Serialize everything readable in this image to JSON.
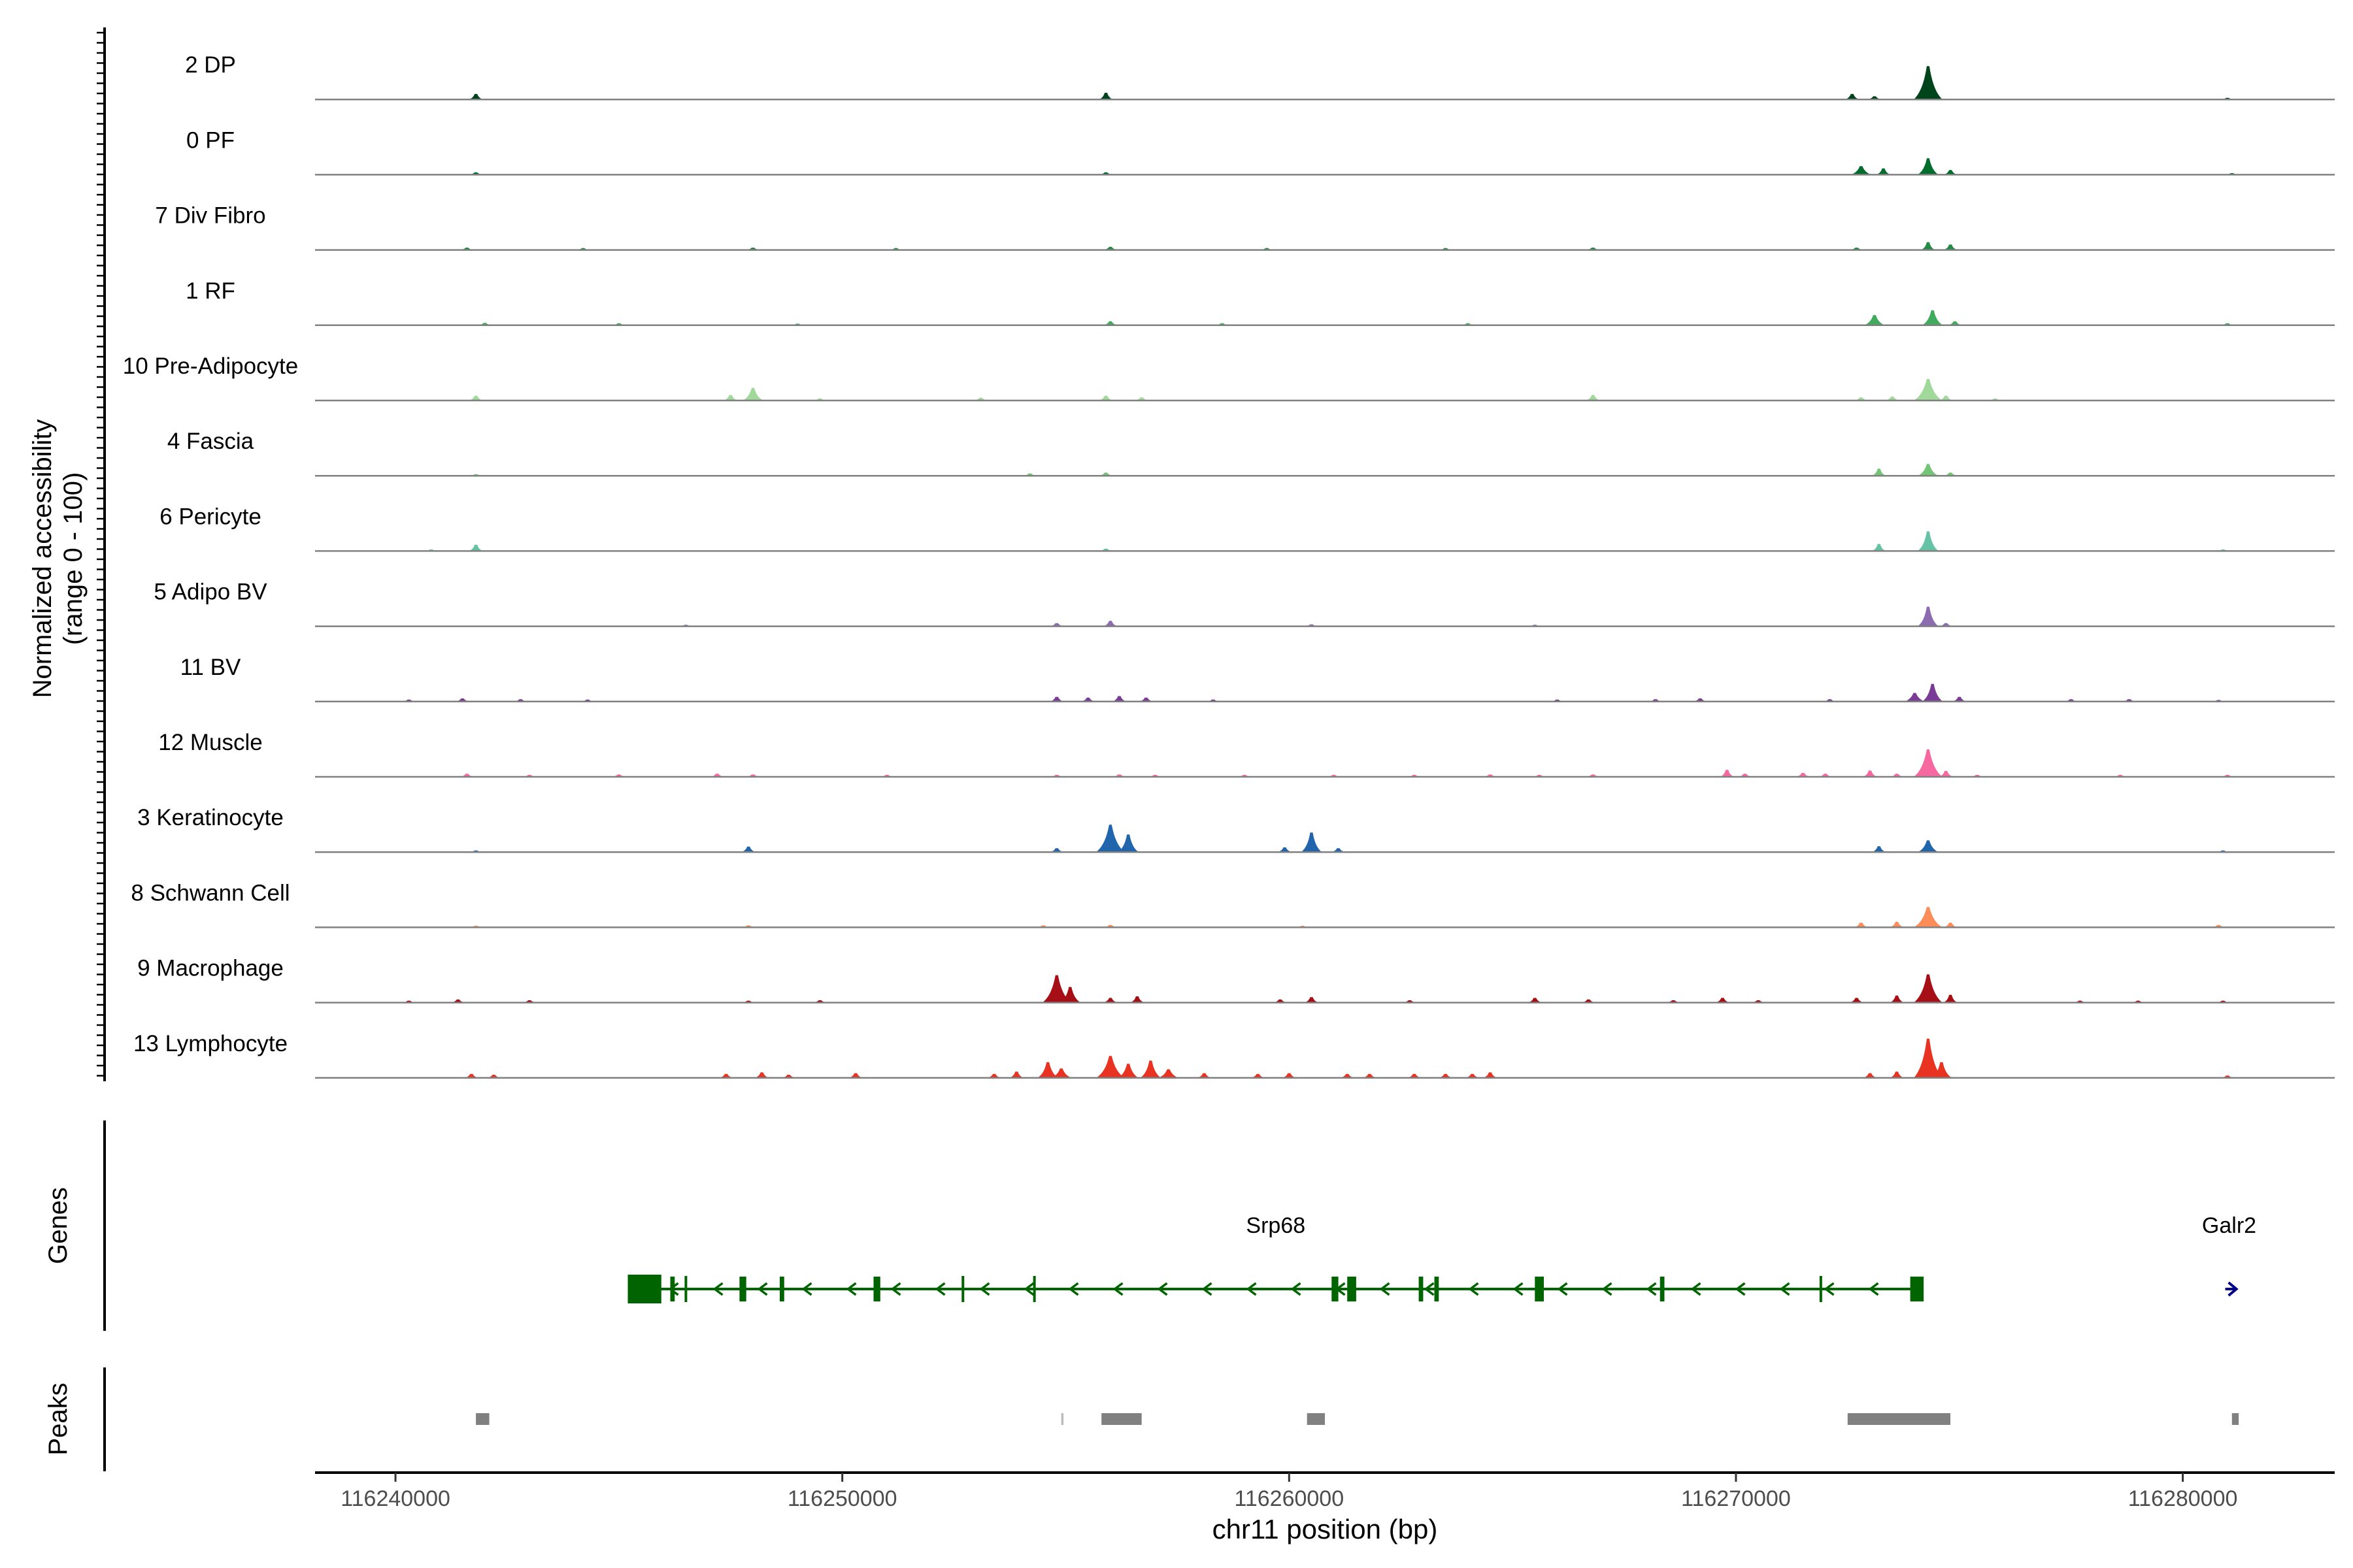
{
  "chart_data": {
    "type": "area",
    "title": "",
    "x_axis": {
      "label": "chr11 position (bp)",
      "range": [
        116238200,
        116283400
      ],
      "ticks": [
        116240000,
        116250000,
        116260000,
        116270000,
        116280000
      ],
      "tick_labels": [
        "116240000",
        "116250000",
        "116260000",
        "116270000",
        "116280000"
      ]
    },
    "coverage_panel": {
      "ylabel_line1": "Normalized accessibility",
      "ylabel_line2": "(range 0 - 100)",
      "ylim": [
        0,
        100
      ],
      "series": [
        {
          "name": "2 DP",
          "color": "#00441b",
          "peaks": [
            [
              116241800,
              14
            ],
            [
              116255900,
              17
            ],
            [
              116272600,
              14
            ],
            [
              116273100,
              8
            ],
            [
              116274300,
              85
            ],
            [
              116281000,
              4
            ]
          ]
        },
        {
          "name": "0 PF",
          "color": "#006d2c",
          "peaks": [
            [
              116241800,
              6
            ],
            [
              116255900,
              6
            ],
            [
              116272800,
              22
            ],
            [
              116273300,
              16
            ],
            [
              116274300,
              42
            ],
            [
              116274800,
              12
            ],
            [
              116281100,
              4
            ]
          ]
        },
        {
          "name": "7 Div Fibro",
          "color": "#238b45",
          "peaks": [
            [
              116241600,
              6
            ],
            [
              116244200,
              5
            ],
            [
              116248000,
              6
            ],
            [
              116251200,
              5
            ],
            [
              116256000,
              8
            ],
            [
              116259500,
              5
            ],
            [
              116263500,
              5
            ],
            [
              116266800,
              6
            ],
            [
              116272700,
              6
            ],
            [
              116274300,
              20
            ],
            [
              116274800,
              14
            ]
          ]
        },
        {
          "name": "1 RF",
          "color": "#41ab5d",
          "peaks": [
            [
              116242000,
              6
            ],
            [
              116245000,
              5
            ],
            [
              116249000,
              4
            ],
            [
              116256000,
              10
            ],
            [
              116258500,
              5
            ],
            [
              116264000,
              5
            ],
            [
              116273100,
              26
            ],
            [
              116274400,
              38
            ],
            [
              116274900,
              10
            ],
            [
              116281000,
              5
            ]
          ]
        },
        {
          "name": "10 Pre-Adipocyte",
          "color": "#a1d99b",
          "peaks": [
            [
              116241800,
              12
            ],
            [
              116247500,
              14
            ],
            [
              116248000,
              32
            ],
            [
              116249500,
              5
            ],
            [
              116253100,
              7
            ],
            [
              116255900,
              12
            ],
            [
              116256700,
              8
            ],
            [
              116266800,
              14
            ],
            [
              116272800,
              8
            ],
            [
              116273500,
              10
            ],
            [
              116274300,
              55
            ],
            [
              116274700,
              12
            ],
            [
              116275800,
              5
            ]
          ]
        },
        {
          "name": "4 Fascia",
          "color": "#74c476",
          "peaks": [
            [
              116241800,
              4
            ],
            [
              116254200,
              6
            ],
            [
              116255900,
              8
            ],
            [
              116273200,
              18
            ],
            [
              116274300,
              30
            ],
            [
              116274800,
              8
            ]
          ]
        },
        {
          "name": "6 Pericyte",
          "color": "#66c2a4",
          "peaks": [
            [
              116240800,
              4
            ],
            [
              116241800,
              16
            ],
            [
              116255900,
              6
            ],
            [
              116273200,
              18
            ],
            [
              116274300,
              50
            ],
            [
              116280900,
              4
            ]
          ]
        },
        {
          "name": "5 Adipo BV",
          "color": "#8c6bb1",
          "peaks": [
            [
              116246500,
              4
            ],
            [
              116254800,
              8
            ],
            [
              116256000,
              14
            ],
            [
              116260500,
              5
            ],
            [
              116265500,
              4
            ],
            [
              116274300,
              50
            ],
            [
              116274700,
              8
            ]
          ]
        },
        {
          "name": "11 BV",
          "color": "#7a3b96",
          "peaks": [
            [
              116240300,
              5
            ],
            [
              116241500,
              8
            ],
            [
              116242800,
              6
            ],
            [
              116244300,
              5
            ],
            [
              116254800,
              12
            ],
            [
              116255500,
              10
            ],
            [
              116256200,
              14
            ],
            [
              116256800,
              10
            ],
            [
              116258300,
              5
            ],
            [
              116266000,
              5
            ],
            [
              116268200,
              6
            ],
            [
              116269200,
              8
            ],
            [
              116272100,
              6
            ],
            [
              116274000,
              22
            ],
            [
              116274400,
              45
            ],
            [
              116275000,
              12
            ],
            [
              116277500,
              6
            ],
            [
              116278800,
              6
            ],
            [
              116280800,
              4
            ]
          ]
        },
        {
          "name": "12 Muscle",
          "color": "#f768a1",
          "peaks": [
            [
              116241600,
              8
            ],
            [
              116243000,
              5
            ],
            [
              116245000,
              6
            ],
            [
              116247200,
              8
            ],
            [
              116248000,
              6
            ],
            [
              116251000,
              5
            ],
            [
              116254800,
              5
            ],
            [
              116256200,
              6
            ],
            [
              116257000,
              5
            ],
            [
              116259000,
              5
            ],
            [
              116261000,
              5
            ],
            [
              116262800,
              5
            ],
            [
              116264500,
              6
            ],
            [
              116265600,
              5
            ],
            [
              116266800,
              6
            ],
            [
              116269800,
              18
            ],
            [
              116270200,
              8
            ],
            [
              116271500,
              10
            ],
            [
              116272000,
              8
            ],
            [
              116273000,
              16
            ],
            [
              116273600,
              8
            ],
            [
              116274300,
              70
            ],
            [
              116274700,
              15
            ],
            [
              116275400,
              5
            ],
            [
              116278600,
              5
            ],
            [
              116281000,
              5
            ]
          ]
        },
        {
          "name": "3 Keratinocyte",
          "color": "#2166ac",
          "peaks": [
            [
              116241800,
              4
            ],
            [
              116247900,
              14
            ],
            [
              116254800,
              10
            ],
            [
              116256000,
              70
            ],
            [
              116256400,
              45
            ],
            [
              116259900,
              12
            ],
            [
              116260500,
              50
            ],
            [
              116261100,
              10
            ],
            [
              116273200,
              15
            ],
            [
              116274300,
              30
            ],
            [
              116280900,
              4
            ]
          ]
        },
        {
          "name": "8 Schwann Cell",
          "color": "#fc8d59",
          "peaks": [
            [
              116241800,
              4
            ],
            [
              116247900,
              5
            ],
            [
              116254500,
              5
            ],
            [
              116256000,
              6
            ],
            [
              116260300,
              4
            ],
            [
              116272800,
              12
            ],
            [
              116273600,
              14
            ],
            [
              116274300,
              52
            ],
            [
              116274800,
              12
            ],
            [
              116280800,
              6
            ]
          ]
        },
        {
          "name": "9 Macrophage",
          "color": "#a50f15",
          "peaks": [
            [
              116240300,
              5
            ],
            [
              116241400,
              8
            ],
            [
              116243000,
              6
            ],
            [
              116247900,
              5
            ],
            [
              116249500,
              6
            ],
            [
              116254800,
              70
            ],
            [
              116255100,
              40
            ],
            [
              116256000,
              12
            ],
            [
              116256600,
              16
            ],
            [
              116259800,
              8
            ],
            [
              116260500,
              14
            ],
            [
              116262700,
              6
            ],
            [
              116265500,
              12
            ],
            [
              116266700,
              8
            ],
            [
              116268600,
              6
            ],
            [
              116269700,
              12
            ],
            [
              116270500,
              6
            ],
            [
              116272700,
              12
            ],
            [
              116273600,
              18
            ],
            [
              116274300,
              72
            ],
            [
              116274800,
              20
            ],
            [
              116277700,
              5
            ],
            [
              116279000,
              5
            ],
            [
              116280900,
              5
            ]
          ]
        },
        {
          "name": "13 Lymphocyte",
          "color": "#e83323",
          "peaks": [
            [
              116241700,
              10
            ],
            [
              116242200,
              8
            ],
            [
              116247400,
              10
            ],
            [
              116248200,
              14
            ],
            [
              116248800,
              8
            ],
            [
              116250300,
              12
            ],
            [
              116253400,
              10
            ],
            [
              116253900,
              16
            ],
            [
              116254600,
              40
            ],
            [
              116254900,
              24
            ],
            [
              116256000,
              56
            ],
            [
              116256400,
              36
            ],
            [
              116256900,
              44
            ],
            [
              116257300,
              22
            ],
            [
              116258100,
              12
            ],
            [
              116259300,
              10
            ],
            [
              116260000,
              12
            ],
            [
              116261300,
              10
            ],
            [
              116261800,
              10
            ],
            [
              116262800,
              10
            ],
            [
              116263500,
              10
            ],
            [
              116264100,
              10
            ],
            [
              116264500,
              14
            ],
            [
              116273000,
              12
            ],
            [
              116273600,
              16
            ],
            [
              116274300,
              100
            ],
            [
              116274600,
              40
            ],
            [
              116281000,
              6
            ]
          ]
        }
      ]
    },
    "genes_panel": {
      "ylabel": "Genes",
      "genes": [
        {
          "name": "Srp68",
          "strand": "-",
          "start": 116245200,
          "end": 116274200,
          "color": "#006400",
          "exons": [
            [
              116245200,
              116245950
            ],
            [
              116246150,
              116246250
            ],
            [
              116247700,
              116247850
            ],
            [
              116248600,
              116248700
            ],
            [
              116250700,
              116250850
            ],
            [
              116260950,
              116261100
            ],
            [
              116261300,
              116261500
            ],
            [
              116262900,
              116263000
            ],
            [
              116263250,
              116263350
            ],
            [
              116265500,
              116265700
            ],
            [
              116268300,
              116268400
            ],
            [
              116273900,
              116274200
            ]
          ],
          "thin_exons": [
            116246500,
            116252700,
            116254300,
            116271900
          ]
        },
        {
          "name": "Galr2",
          "strand": "+",
          "start": 116280950,
          "end": 116281200,
          "color": "#00008b",
          "exons": []
        }
      ]
    },
    "peaks_panel": {
      "ylabel": "Peaks",
      "peaks": [
        [
          116241800,
          116242100
        ],
        [
          116254900,
          116254950
        ],
        [
          116255800,
          116256700
        ],
        [
          116260400,
          116260800
        ],
        [
          116272500,
          116274800
        ],
        [
          116281100,
          116281250
        ]
      ]
    }
  }
}
